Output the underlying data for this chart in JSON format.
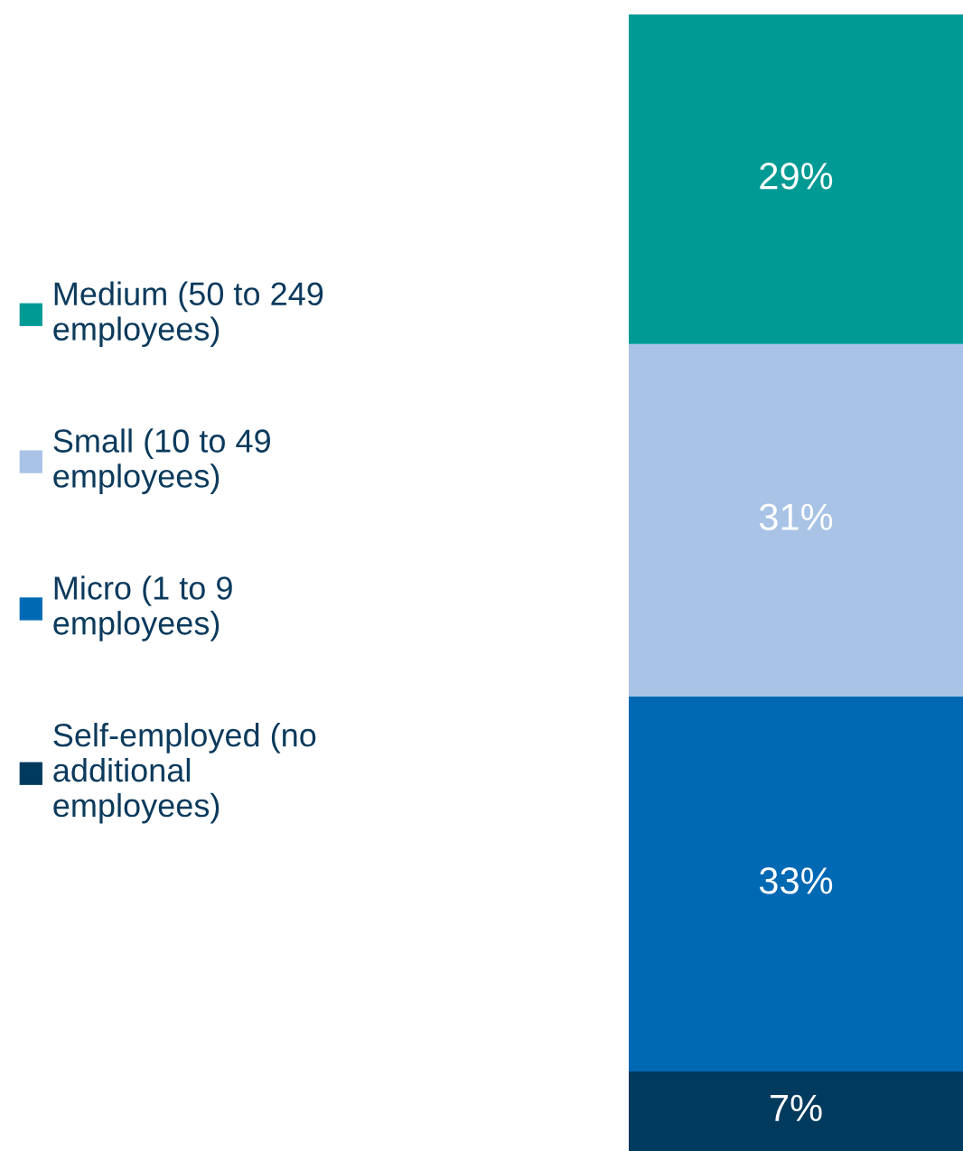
{
  "chart_data": {
    "type": "bar",
    "stacked": true,
    "categories": [
      null
    ],
    "legend": "left",
    "series": [
      {
        "name": "Self-employed (no\nadditional\nemployees)",
        "color": "#003a5d",
        "values": [
          7
        ],
        "value_labels": [
          "7%"
        ]
      },
      {
        "name": "Micro (1 to 9\nemployees)",
        "color": "#0069b4",
        "values": [
          33
        ],
        "value_labels": [
          "33%"
        ]
      },
      {
        "name": "Small (10 to 49\nemployees)",
        "color": "#a8c3e5",
        "values": [
          31
        ],
        "value_labels": [
          "31%"
        ]
      },
      {
        "name": "Medium (50 to 249\nemployees)",
        "color": "#009a94",
        "values": [
          29
        ],
        "value_labels": [
          "29%"
        ]
      }
    ]
  }
}
